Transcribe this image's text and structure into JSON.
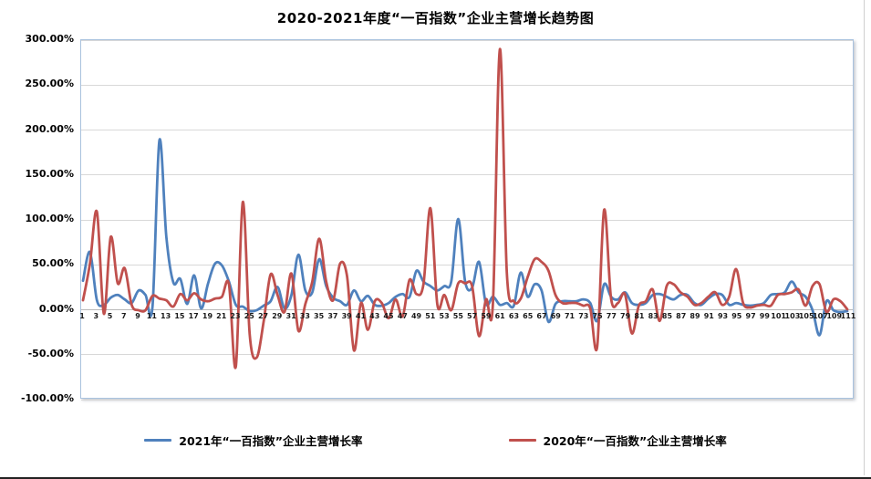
{
  "chart_data": {
    "type": "line",
    "title": "2020-2021年度“一百指数”企业主营增长趋势图",
    "x_range": [
      1,
      111
    ],
    "x_tick_labels": [
      1,
      3,
      5,
      7,
      9,
      11,
      13,
      15,
      17,
      19,
      21,
      23,
      25,
      27,
      29,
      31,
      33,
      35,
      37,
      39,
      41,
      43,
      45,
      47,
      49,
      51,
      53,
      55,
      57,
      59,
      61,
      63,
      65,
      67,
      69,
      71,
      73,
      75,
      77,
      79,
      81,
      83,
      85,
      87,
      89,
      91,
      93,
      95,
      97,
      99,
      101,
      103,
      105,
      107,
      109,
      111
    ],
    "ylim": [
      -100,
      300
    ],
    "y_step": 50,
    "y_tick_labels": [
      "300.00%",
      "250.00%",
      "200.00%",
      "150.00%",
      "100.00%",
      "50.00%",
      "0.00%",
      "-50.00%",
      "-100.00%"
    ],
    "y_tick_values": [
      300,
      250,
      200,
      150,
      100,
      50,
      0,
      -50,
      -100
    ],
    "grid": "horizontal",
    "legend_position": "bottom",
    "unit": "percent",
    "series": [
      {
        "name": "2021年“一百指数”企业主营增长率",
        "color": "#4f81bd",
        "values": [
          31,
          63,
          9,
          4,
          12,
          15,
          10,
          6,
          20,
          15,
          2,
          188,
          80,
          29,
          33,
          5,
          37,
          0,
          28,
          50,
          48,
          30,
          4,
          2,
          -3,
          -2,
          3,
          8,
          24,
          0,
          15,
          60,
          20,
          18,
          55,
          25,
          12,
          8,
          4,
          20,
          8,
          14,
          4,
          3,
          6,
          13,
          16,
          13,
          42,
          30,
          25,
          20,
          25,
          30,
          100,
          30,
          23,
          52,
          5,
          13,
          4,
          6,
          3,
          40,
          13,
          27,
          20,
          -15,
          5,
          8,
          8,
          8,
          10,
          6,
          -14,
          27,
          13,
          10,
          18,
          6,
          4,
          6,
          15,
          16,
          13,
          10,
          15,
          15,
          6,
          4,
          11,
          16,
          15,
          4,
          6,
          4,
          3,
          4,
          6,
          15,
          16,
          18,
          30,
          18,
          13,
          -2,
          -30,
          8,
          -2,
          -4,
          -3
        ]
      },
      {
        "name": "2020年“一百指数”企业主营增长率",
        "color": "#c0504d",
        "values": [
          9,
          50,
          108,
          -6,
          80,
          28,
          45,
          4,
          -2,
          -2,
          14,
          11,
          9,
          2,
          16,
          9,
          17,
          10,
          8,
          11,
          13,
          27,
          -65,
          119,
          -30,
          -55,
          -15,
          38,
          15,
          -4,
          39,
          -25,
          5,
          30,
          78,
          30,
          9,
          50,
          36,
          -47,
          6,
          -24,
          8,
          6,
          -11,
          10,
          -9,
          32,
          16,
          27,
          112,
          4,
          15,
          -2,
          28,
          28,
          25,
          -31,
          10,
          5,
          290,
          40,
          8,
          11,
          35,
          55,
          52,
          42,
          15,
          6,
          6,
          6,
          3,
          0,
          -43,
          110,
          11,
          6,
          16,
          -28,
          3,
          8,
          21,
          -14,
          25,
          27,
          18,
          13,
          4,
          6,
          13,
          18,
          4,
          13,
          44,
          6,
          1,
          3,
          4,
          3,
          15,
          16,
          18,
          21,
          3,
          25,
          27,
          -4,
          10,
          8,
          -1
        ]
      }
    ],
    "plot_border_color": "#a9c2de",
    "gridline_color": "#d8d8d8"
  }
}
